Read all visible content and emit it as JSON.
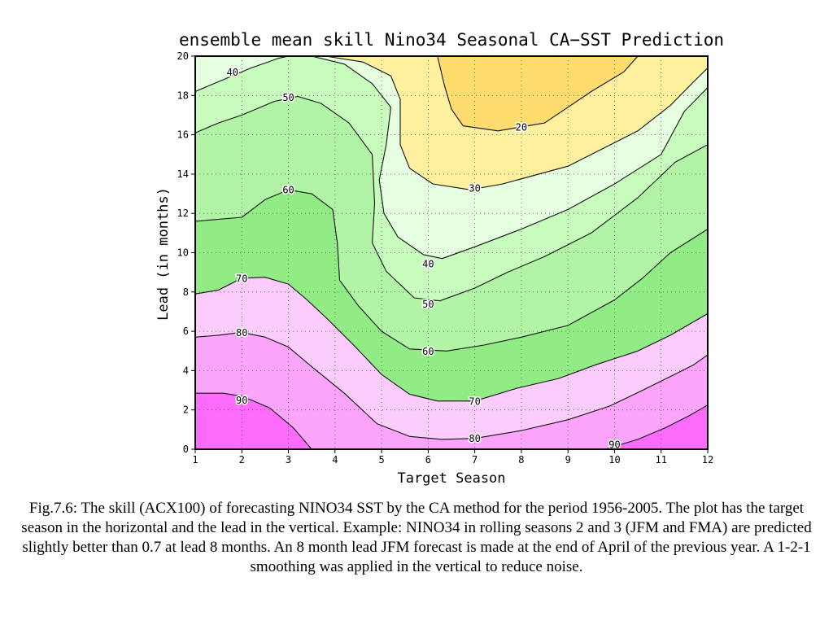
{
  "chart_data": {
    "type": "contour",
    "title": "ensemble mean skill Nino34 Seasonal CA−SST Prediction",
    "xlabel": "Target Season",
    "ylabel": "Lead (in months)",
    "xlim": [
      1,
      12
    ],
    "ylim": [
      0,
      20
    ],
    "xticks": [
      "1",
      "2",
      "3",
      "4",
      "5",
      "6",
      "7",
      "8",
      "9",
      "10",
      "11",
      "12"
    ],
    "yticks": [
      "0",
      "2",
      "4",
      "6",
      "8",
      "10",
      "12",
      "14",
      "16",
      "18",
      "20"
    ],
    "grid": true,
    "levels": [
      10,
      20,
      30,
      40,
      50,
      60,
      70,
      80,
      90
    ],
    "fill_colors": [
      "#ffdc6e",
      "#fff0a0",
      "#e6ffe1",
      "#c7fcbd",
      "#b1f4a6",
      "#91ec86",
      "#fccdfc",
      "#fda4fc",
      "#fd6cfd"
    ],
    "contour_lines": [
      {
        "level": 20,
        "points": [
          [
            6.2,
            20
          ],
          [
            6.35,
            18.5
          ],
          [
            6.5,
            17.3
          ],
          [
            6.75,
            16.45
          ],
          [
            7.5,
            16.2
          ],
          [
            8.5,
            16.6
          ],
          [
            9.5,
            18.2
          ],
          [
            10.2,
            19.2
          ],
          [
            10.5,
            20
          ]
        ]
      },
      {
        "level": 30,
        "points": [
          [
            3.8,
            20
          ],
          [
            4.6,
            19.7
          ],
          [
            5.2,
            19
          ],
          [
            5.4,
            17.8
          ],
          [
            5.4,
            15.5
          ],
          [
            5.6,
            14.3
          ],
          [
            6.1,
            13.5
          ],
          [
            6.9,
            13.2
          ],
          [
            7.6,
            13.5
          ],
          [
            9,
            14.4
          ],
          [
            10.5,
            16.2
          ],
          [
            11.2,
            17.5
          ],
          [
            11.7,
            18.7
          ],
          [
            12,
            19.4
          ]
        ]
      },
      {
        "level": 40,
        "points": [
          [
            1,
            18.2
          ],
          [
            1.5,
            18.7
          ],
          [
            2.2,
            19.4
          ],
          [
            2.8,
            19.9
          ],
          [
            3,
            20
          ],
          [
            3.5,
            20
          ],
          [
            4.2,
            19.6
          ],
          [
            4.8,
            18.6
          ],
          [
            5.2,
            17.4
          ],
          [
            5.1,
            15.5
          ],
          [
            4.95,
            13.7
          ],
          [
            5.05,
            12
          ],
          [
            5.35,
            10.8
          ],
          [
            5.9,
            9.9
          ],
          [
            6.3,
            9.7
          ],
          [
            7,
            10.3
          ],
          [
            8,
            11.2
          ],
          [
            9,
            12.2
          ],
          [
            10,
            13.5
          ],
          [
            11,
            15
          ],
          [
            11.5,
            17.2
          ],
          [
            12,
            18.4
          ]
        ]
      },
      {
        "level": 50,
        "points": [
          [
            1,
            16.1
          ],
          [
            1.5,
            16.6
          ],
          [
            2,
            17
          ],
          [
            2.7,
            17.7
          ],
          [
            3.2,
            17.95
          ],
          [
            3.7,
            17.6
          ],
          [
            4.3,
            16.6
          ],
          [
            4.8,
            15
          ],
          [
            4.85,
            12.5
          ],
          [
            4.8,
            10.5
          ],
          [
            5.1,
            9.05
          ],
          [
            5.7,
            7.7
          ],
          [
            6.25,
            7.55
          ],
          [
            7,
            8.2
          ],
          [
            7.7,
            9
          ],
          [
            8.5,
            9.8
          ],
          [
            9.5,
            11
          ],
          [
            10.5,
            12.8
          ],
          [
            11.3,
            14.6
          ],
          [
            12,
            15.5
          ]
        ]
      },
      {
        "level": 60,
        "points": [
          [
            1,
            11.6
          ],
          [
            2,
            11.8
          ],
          [
            2.5,
            12.7
          ],
          [
            3,
            13.2
          ],
          [
            3.5,
            13
          ],
          [
            3.95,
            12.2
          ],
          [
            4.05,
            10.5
          ],
          [
            4.1,
            8.6
          ],
          [
            4.5,
            7.3
          ],
          [
            5,
            6
          ],
          [
            5.6,
            5.1
          ],
          [
            6.4,
            5
          ],
          [
            7.2,
            5.3
          ],
          [
            8,
            5.7
          ],
          [
            9,
            6.3
          ],
          [
            10,
            7.6
          ],
          [
            10.6,
            8.7
          ],
          [
            11.2,
            10
          ],
          [
            12,
            11.2
          ]
        ]
      },
      {
        "level": 70,
        "points": [
          [
            1,
            7.9
          ],
          [
            1.5,
            8.1
          ],
          [
            2,
            8.7
          ],
          [
            2.5,
            8.75
          ],
          [
            3,
            8.4
          ],
          [
            3.4,
            7.6
          ],
          [
            3.85,
            6.6
          ],
          [
            4.4,
            5.3
          ],
          [
            5,
            3.8
          ],
          [
            5.6,
            2.8
          ],
          [
            6.2,
            2.45
          ],
          [
            7,
            2.45
          ],
          [
            7.9,
            3.1
          ],
          [
            8.8,
            3.6
          ],
          [
            9.6,
            4.3
          ],
          [
            10.5,
            5
          ],
          [
            11.2,
            5.8
          ],
          [
            12,
            6.9
          ]
        ]
      },
      {
        "level": 80,
        "points": [
          [
            1,
            5.7
          ],
          [
            1.5,
            5.8
          ],
          [
            2,
            5.95
          ],
          [
            2.5,
            5.7
          ],
          [
            3,
            5.2
          ],
          [
            3.5,
            4.2
          ],
          [
            4.2,
            2.85
          ],
          [
            4.9,
            1.3
          ],
          [
            5.6,
            0.65
          ],
          [
            6.3,
            0.5
          ],
          [
            7,
            0.55
          ],
          [
            8,
            0.95
          ],
          [
            9,
            1.5
          ],
          [
            9.9,
            2.2
          ],
          [
            10.6,
            3
          ],
          [
            11.2,
            3.7
          ],
          [
            11.7,
            4.3
          ],
          [
            12,
            4.8
          ]
        ]
      },
      {
        "level": 90,
        "points": [
          [
            1,
            2.85
          ],
          [
            1.6,
            2.85
          ],
          [
            2,
            2.7
          ],
          [
            2.6,
            2.1
          ],
          [
            3.1,
            1.1
          ],
          [
            3.5,
            0
          ]
        ]
      },
      {
        "level": 90,
        "points": [
          [
            9.8,
            0
          ],
          [
            10.5,
            0.5
          ],
          [
            11.1,
            1.1
          ],
          [
            11.6,
            1.7
          ],
          [
            12,
            2.25
          ]
        ]
      }
    ],
    "fill_bands": [
      {
        "name": "band-80-90-right",
        "color": "#fd6cfd",
        "points": [
          [
            9.8,
            0
          ],
          [
            10.5,
            0.5
          ],
          [
            11.1,
            1.1
          ],
          [
            11.6,
            1.7
          ],
          [
            12,
            2.25
          ],
          [
            12,
            0
          ]
        ]
      }
    ],
    "contour_labels": [
      {
        "text": "40",
        "x": 1.8,
        "y": 19.2
      },
      {
        "text": "50",
        "x": 3.0,
        "y": 17.9
      },
      {
        "text": "60",
        "x": 3.0,
        "y": 13.2
      },
      {
        "text": "70",
        "x": 2.0,
        "y": 8.7
      },
      {
        "text": "80",
        "x": 2.0,
        "y": 5.95
      },
      {
        "text": "90",
        "x": 2.0,
        "y": 2.5
      },
      {
        "text": "20",
        "x": 8.0,
        "y": 16.4
      },
      {
        "text": "30",
        "x": 7.0,
        "y": 13.3
      },
      {
        "text": "40",
        "x": 6.0,
        "y": 9.45
      },
      {
        "text": "50",
        "x": 6.0,
        "y": 7.4
      },
      {
        "text": "60",
        "x": 6.0,
        "y": 5.0
      },
      {
        "text": "70",
        "x": 7.0,
        "y": 2.45
      },
      {
        "text": "80",
        "x": 7.0,
        "y": 0.55
      },
      {
        "text": "90",
        "x": 10.0,
        "y": 0.25
      }
    ]
  },
  "caption": "Fig.7.6: The skill (ACX100) of forecasting NINO34 SST by the CA method for the period 1956-2005. The plot has the target season in the horizontal and the lead in the vertical. Example: NINO34 in rolling seasons 2 and 3 (JFM and FMA) are predicted slightly better than 0.7 at lead 8 months. An 8 month lead JFM forecast is made at the end of April of the previous year. A 1-2-1 smoothing was applied in the vertical to reduce noise."
}
